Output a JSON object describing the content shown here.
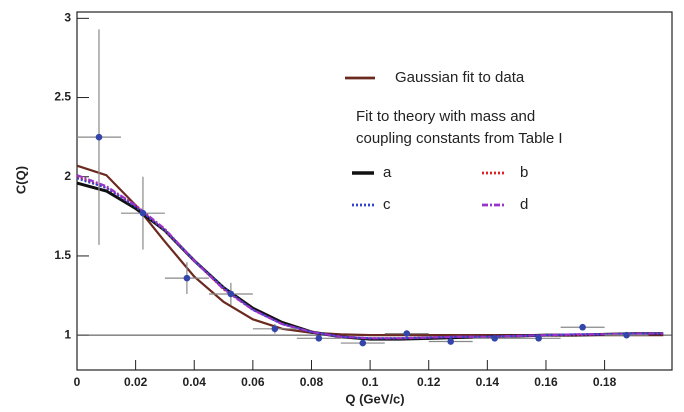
{
  "chart_data": {
    "type": "scatter",
    "y_label": "C(Q)",
    "x_label": "Q (GeV/c)",
    "xlim": [
      0,
      0.203
    ],
    "ylim": [
      0.78,
      3.04
    ],
    "xticks": [
      0,
      0.02,
      0.04,
      0.06,
      0.08,
      0.1,
      0.12,
      0.14,
      0.16,
      0.18
    ],
    "yticks": [
      1,
      1.5,
      2,
      2.5,
      3
    ],
    "reference_line": 1,
    "points": {
      "color": "#3344aa",
      "x": [
        0.0075,
        0.0225,
        0.0375,
        0.0525,
        0.0675,
        0.0825,
        0.0975,
        0.1125,
        0.1275,
        0.1425,
        0.1575,
        0.1725,
        0.1875
      ],
      "values": [
        2.25,
        1.77,
        1.36,
        1.26,
        1.04,
        0.98,
        0.95,
        1.01,
        0.96,
        0.98,
        0.98,
        1.05,
        1.0
      ],
      "xerr": [
        0.0075,
        0.0075,
        0.0075,
        0.0075,
        0.0075,
        0.0075,
        0.0075,
        0.0075,
        0.0075,
        0.0075,
        0.0075,
        0.0075,
        0.0075
      ],
      "yerr": [
        0.68,
        0.23,
        0.1,
        0.07,
        0.03,
        0.02,
        0.02,
        0.02,
        0.02,
        0.02,
        0.02,
        0.02,
        0.02
      ]
    },
    "line_x": [
      0,
      0.01,
      0.02,
      0.03,
      0.04,
      0.05,
      0.06,
      0.07,
      0.08,
      0.09,
      0.1,
      0.11,
      0.12,
      0.13,
      0.14,
      0.15,
      0.16,
      0.17,
      0.18,
      0.19,
      0.2
    ],
    "legend_subtitle": [
      "Fit to theory with mass and",
      "coupling constants from Table I"
    ],
    "series": [
      {
        "name": "Gaussian fit to data",
        "color": "#6b2a1f",
        "style": "solid",
        "values": [
          2.07,
          2.01,
          1.82,
          1.59,
          1.37,
          1.21,
          1.1,
          1.04,
          1.015,
          1.005,
          1.0,
          1.0,
          1.0,
          1.0,
          1.0,
          1.0,
          1.0,
          1.0,
          1.0,
          1.0,
          1.0
        ]
      },
      {
        "name": "a",
        "color": "#111111",
        "style": "solid",
        "values": [
          1.96,
          1.91,
          1.8,
          1.66,
          1.47,
          1.3,
          1.17,
          1.08,
          1.02,
          0.99,
          0.975,
          0.975,
          0.98,
          0.985,
          0.99,
          0.995,
          1.0,
          1.0,
          1.005,
          1.01,
          1.01
        ]
      },
      {
        "name": "b",
        "color": "#e02020",
        "style": "dotted",
        "values": [
          2.0,
          1.93,
          1.82,
          1.66,
          1.47,
          1.29,
          1.16,
          1.07,
          1.02,
          0.99,
          0.98,
          0.98,
          0.985,
          0.99,
          0.99,
          0.995,
          1.0,
          1.0,
          1.005,
          1.01,
          1.01
        ]
      },
      {
        "name": "c",
        "color": "#3344cc",
        "style": "dotted",
        "values": [
          1.99,
          1.93,
          1.81,
          1.66,
          1.47,
          1.3,
          1.16,
          1.07,
          1.02,
          0.99,
          0.98,
          0.98,
          0.985,
          0.99,
          0.99,
          0.995,
          1.0,
          1.005,
          1.005,
          1.01,
          1.01
        ]
      },
      {
        "name": "d",
        "color": "#9933cc",
        "style": "dashdot",
        "values": [
          2.01,
          1.94,
          1.82,
          1.67,
          1.47,
          1.29,
          1.16,
          1.07,
          1.02,
          0.99,
          0.98,
          0.98,
          0.985,
          0.99,
          0.99,
          0.995,
          1.0,
          1.005,
          1.005,
          1.01,
          1.01
        ]
      }
    ]
  }
}
